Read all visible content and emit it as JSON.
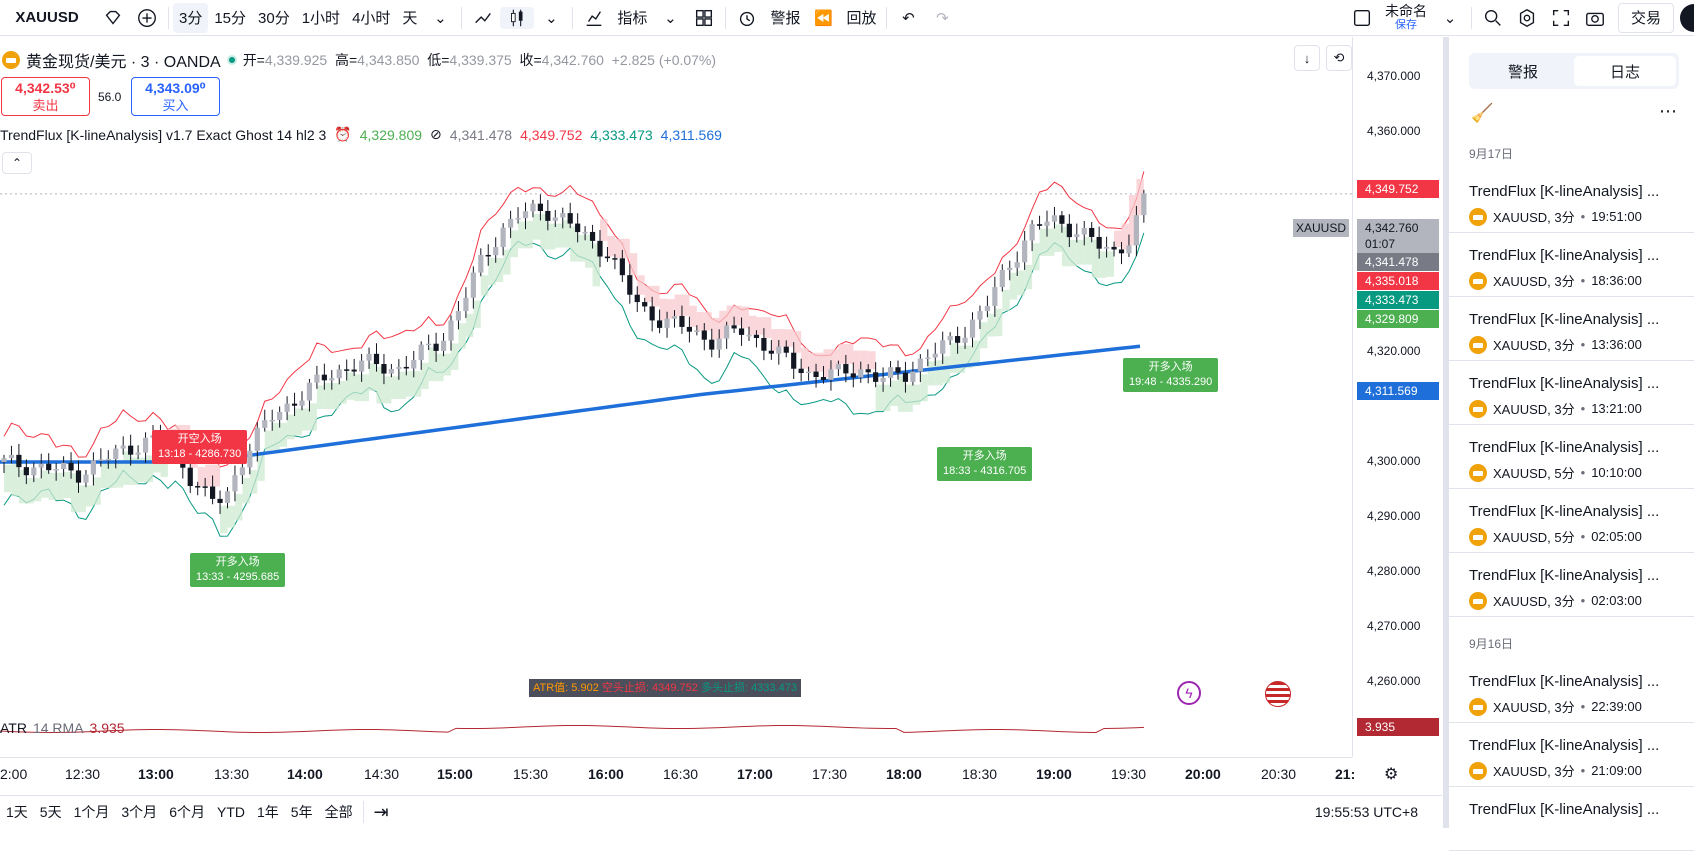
{
  "topbar": {
    "symbol": "XAUUSD",
    "intervals": [
      "3分",
      "15分",
      "30分",
      "1小时",
      "4小时",
      "天"
    ],
    "active_interval": "3分",
    "indicators_label": "指标",
    "alerts_label": "警报",
    "replay_label": "回放",
    "layout_name": "未命名",
    "layout_sub": "保存",
    "trade_label": "交易"
  },
  "legend": {
    "title": "黄金现货/美元 · 3 · OANDA",
    "o_label": "开=",
    "o": "4,339.925",
    "h_label": "高=",
    "h": "4,343.850",
    "l_label": "低=",
    "l": "4,339.375",
    "c_label": "收=",
    "c": "4,342.760",
    "change": "+2.825 (+0.07%)",
    "sell_price": "4,342.53⁰",
    "sell_label": "卖出",
    "spread": "56.0",
    "buy_price": "4,343.09⁰",
    "buy_label": "买入"
  },
  "indicator": {
    "name": "TrendFlux [K-lineAnalysis] v1.7 Exact Ghost 14 hl2 3",
    "v1": "4,329.809",
    "v2": "4,341.478",
    "v3": "4,349.752",
    "v4": "4,333.473",
    "v5": "4,311.569",
    "atr_box": {
      "a": "ATR值: 5.902",
      "b": "空头止损: 4349.752",
      "c": "多头止损: 4333.473"
    }
  },
  "atr_pane": {
    "label": "ATR",
    "params": "14 RMA",
    "value": "3.935"
  },
  "price_axis": {
    "ticks": [
      "4,370.000",
      "4,360.000",
      "4,320.000",
      "4,300.000",
      "4,290.000",
      "4,280.000",
      "4,270.000",
      "4,260.000"
    ],
    "labels": {
      "high": "4,349.752",
      "symbol_tag": "XAUUSD",
      "last": "4,342.760",
      "countdown": "01:07",
      "ghost": "4,341.478",
      "red": "4,335.018",
      "teal": "4,333.473",
      "green": "4,329.809",
      "blue": "4,311.569",
      "atr": "3.935"
    }
  },
  "time_axis": [
    "2:00",
    "12:30",
    "13:00",
    "13:30",
    "14:00",
    "14:30",
    "15:00",
    "15:30",
    "16:00",
    "16:30",
    "17:00",
    "17:30",
    "18:00",
    "18:30",
    "19:00",
    "19:30",
    "20:00",
    "20:30",
    "21:"
  ],
  "annotations": [
    {
      "title": "开空入场",
      "sub": "13:18 - 4286.730",
      "color": "red"
    },
    {
      "title": "开多入场",
      "sub": "13:33 - 4295.685",
      "color": "green"
    },
    {
      "title": "开多入场",
      "sub": "18:33 - 4316.705",
      "color": "green"
    },
    {
      "title": "开多入场",
      "sub": "19:48 - 4335.290",
      "color": "green"
    }
  ],
  "bottombar": {
    "ranges": [
      "1天",
      "5天",
      "1个月",
      "3个月",
      "6个月",
      "YTD",
      "1年",
      "5年",
      "全部"
    ],
    "clock": "19:55:53 UTC+8"
  },
  "sidepanel": {
    "tabs": [
      "警报",
      "日志"
    ],
    "active_tab": "日志",
    "groups": [
      {
        "date": "9月17日",
        "items": [
          {
            "title": "TrendFlux [K-lineAnalysis] ...",
            "sub": "XAUUSD, 3分",
            "time": "19:51:00"
          },
          {
            "title": "TrendFlux [K-lineAnalysis] ...",
            "sub": "XAUUSD, 3分",
            "time": "18:36:00"
          },
          {
            "title": "TrendFlux [K-lineAnalysis] ...",
            "sub": "XAUUSD, 3分",
            "time": "13:36:00"
          },
          {
            "title": "TrendFlux [K-lineAnalysis] ...",
            "sub": "XAUUSD, 3分",
            "time": "13:21:00"
          },
          {
            "title": "TrendFlux [K-lineAnalysis] ...",
            "sub": "XAUUSD, 5分",
            "time": "10:10:00"
          },
          {
            "title": "TrendFlux [K-lineAnalysis] ...",
            "sub": "XAUUSD, 5分",
            "time": "02:05:00"
          },
          {
            "title": "TrendFlux [K-lineAnalysis] ...",
            "sub": "XAUUSD, 3分",
            "time": "02:03:00"
          }
        ]
      },
      {
        "date": "9月16日",
        "items": [
          {
            "title": "TrendFlux [K-lineAnalysis] ...",
            "sub": "XAUUSD, 3分",
            "time": "22:39:00"
          },
          {
            "title": "TrendFlux [K-lineAnalysis] ...",
            "sub": "XAUUSD, 3分",
            "time": "21:09:00"
          },
          {
            "title": "TrendFlux [K-lineAnalysis] ...",
            "sub": "",
            "time": ""
          }
        ]
      }
    ]
  },
  "colors": {
    "up": "#089981",
    "down": "#f23645",
    "ema": "#1e6fd9",
    "band_up": "#4caf50",
    "band_dn": "#f23645"
  }
}
